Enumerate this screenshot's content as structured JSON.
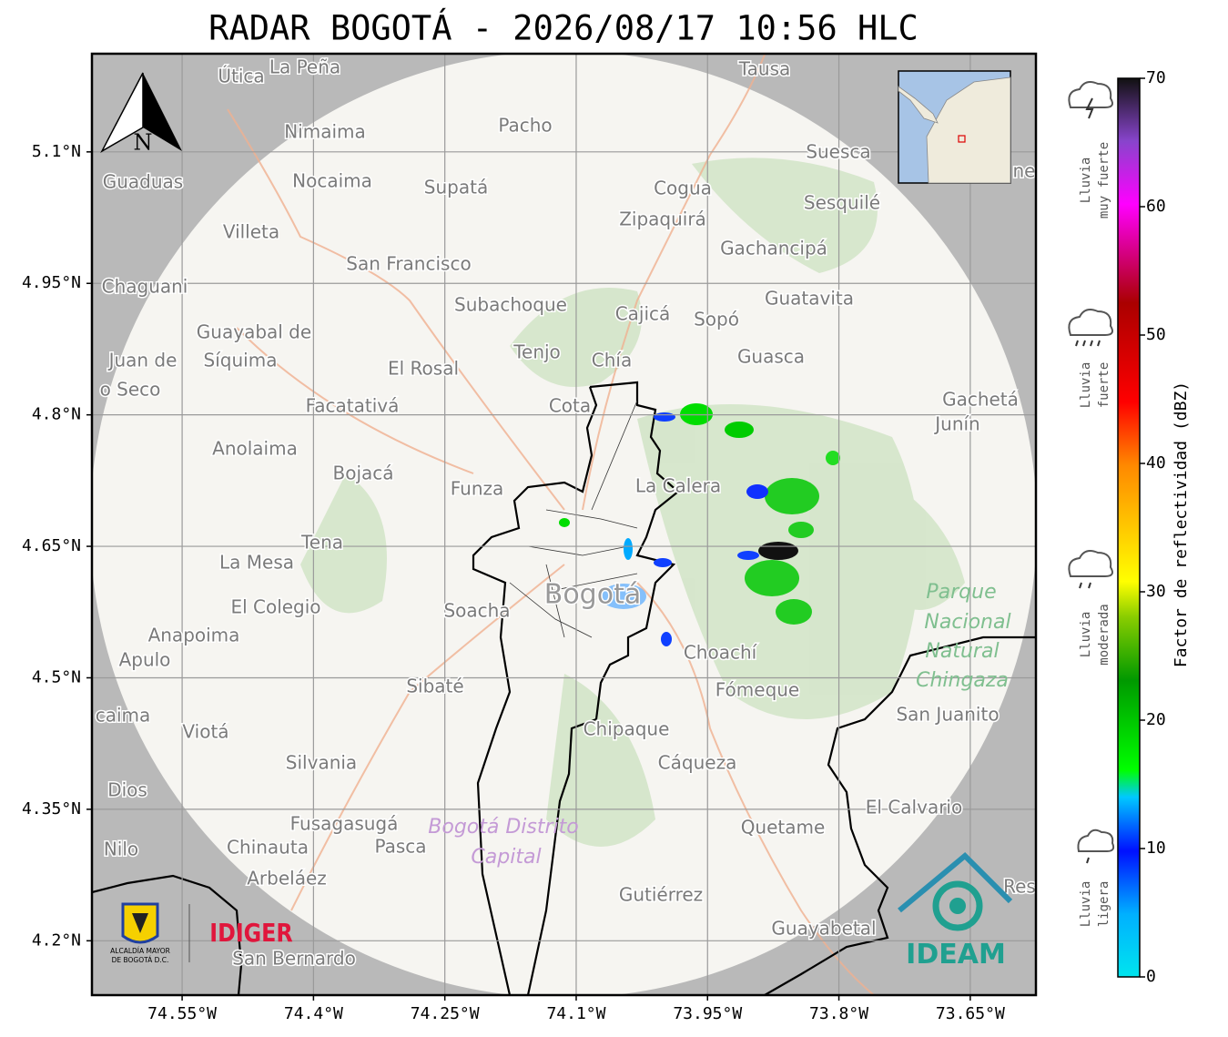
{
  "title": "RADAR BOGOTÁ - 2026/08/17 10:56 HLC",
  "map": {
    "lon_lim": [
      -74.653,
      -73.575
    ],
    "lat_lim": [
      4.138,
      5.212
    ],
    "lon_ticks": [
      {
        "value": -74.55,
        "label": "74.55°W"
      },
      {
        "value": -74.4,
        "label": "74.4°W"
      },
      {
        "value": -74.25,
        "label": "74.25°W"
      },
      {
        "value": -74.1,
        "label": "74.1°W"
      },
      {
        "value": -73.95,
        "label": "73.95°W"
      },
      {
        "value": -73.8,
        "label": "73.8°W"
      },
      {
        "value": -73.65,
        "label": "73.65°W"
      }
    ],
    "lat_ticks": [
      {
        "value": 5.1,
        "label": "5.1°N"
      },
      {
        "value": 4.95,
        "label": "4.95°N"
      },
      {
        "value": 4.8,
        "label": "4.8°N"
      },
      {
        "value": 4.65,
        "label": "4.65°N"
      },
      {
        "value": 4.5,
        "label": "4.5°N"
      },
      {
        "value": 4.35,
        "label": "4.35°N"
      },
      {
        "value": 4.2,
        "label": "4.2°N"
      }
    ],
    "places": [
      "Útica",
      "La Peña",
      "Tausa",
      "Pacho",
      "Nimaima",
      "Suesca",
      "Guaduas",
      "Nocaima",
      "Supatá",
      "Cogua",
      "Sesquilé",
      "Zipaquirá",
      "Villeta",
      "Gachancipá",
      "San Francisco",
      "Chaguani",
      "Guatavita",
      "Subachoque",
      "Cajicá",
      "Sopó",
      "Guayabal de",
      "Síquima",
      "Juan de",
      "o Seco",
      "Tenjo",
      "Chía",
      "Guasca",
      "El Rosal",
      "Facatativá",
      "Cota",
      "Gachetá",
      "Junín",
      "Anolaima",
      "Bojacá",
      "Funza",
      "La Calera",
      "Tena",
      "La Mesa",
      "El Colegio",
      "Soacha",
      "Anapoima",
      "Apulo",
      "Choachí",
      "Sibaté",
      "Fómeque",
      "San Juanito",
      "caima",
      "Viotá",
      "Chipaque",
      "Silvania",
      "Cáqueza",
      "Dios",
      "El Calvario",
      "Fusagasugá",
      "Quetame",
      "Nilo",
      "Chinauta",
      "Pasca",
      "Arbeláez",
      "Gutiérrez",
      "Guayabetal",
      "San Bernardo",
      "Res",
      "ne"
    ],
    "capital": "Bogotá",
    "park_label": [
      "Parque",
      "Nacional",
      "Natural",
      "Chingaza"
    ],
    "district_label": [
      "Bogotá Distrito",
      "Capital"
    ],
    "north": "N"
  },
  "colorbar": {
    "label": "Factor de reflectividad (dBZ)",
    "lim": [
      0,
      70
    ],
    "ticks": [
      0,
      10,
      20,
      30,
      40,
      50,
      60,
      70
    ]
  },
  "rain_levels": [
    [
      "Lluvia",
      "muy fuerte"
    ],
    [
      "Lluvia",
      "fuerte"
    ],
    [
      "Lluvia",
      "moderada"
    ],
    [
      "Lluvia",
      "ligera"
    ]
  ],
  "logos": {
    "alcaldia": [
      "ALCALDÍA MAYOR",
      "DE BOGOTÁ D.C."
    ],
    "idiger": "IDIGER",
    "ideam": "IDEAM"
  }
}
